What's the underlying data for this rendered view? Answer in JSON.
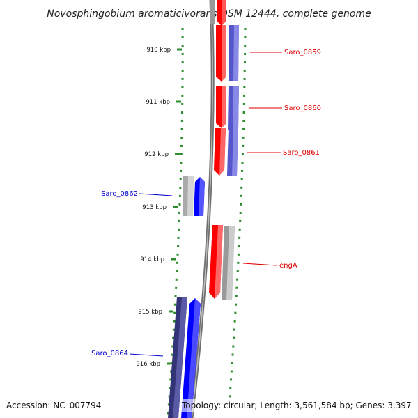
{
  "title": "Novosphingobium aromaticivorans DSM 12444, complete genome",
  "accession": "Accession: NC_007794",
  "topology": "Topology: circular; Length: 3,561,584 bp; Genes: 3,397",
  "kbp_labels": [
    "910 kbp",
    "911 kbp",
    "912 kbp",
    "913 kbp",
    "914 kbp",
    "915 kbp",
    "916 kbp"
  ],
  "genes": [
    {
      "name": "Saro_0859",
      "strand": "forward",
      "color": "#e00000"
    },
    {
      "name": "Saro_0860",
      "strand": "forward",
      "color": "#e00000"
    },
    {
      "name": "Saro_0861",
      "strand": "forward",
      "color": "#e00000"
    },
    {
      "name": "Saro_0862",
      "strand": "reverse",
      "color": "#0000cc"
    },
    {
      "name": "engA",
      "strand": "forward",
      "color": "#e00000"
    },
    {
      "name": "Saro_0864",
      "strand": "reverse",
      "color": "#0000cc"
    }
  ],
  "colors": {
    "forward_gene": "#ff0000",
    "reverse_gene": "#0000ff",
    "forward_label": "#e00000",
    "reverse_label": "#0000cc",
    "tick": "#2e8b2e",
    "backbone": "#888888"
  }
}
